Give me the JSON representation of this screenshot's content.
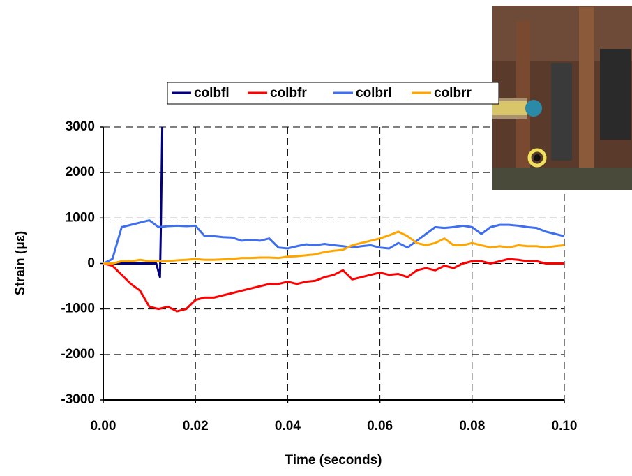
{
  "chart_data": {
    "type": "line",
    "x_label": "Time (seconds)",
    "y_label": "Strain (με)",
    "x": [
      0,
      0.002,
      0.004,
      0.006,
      0.008,
      0.01,
      0.012,
      0.014,
      0.016,
      0.018,
      0.02,
      0.022,
      0.024,
      0.026,
      0.028,
      0.03,
      0.032,
      0.034,
      0.036,
      0.038,
      0.04,
      0.042,
      0.044,
      0.046,
      0.048,
      0.05,
      0.052,
      0.054,
      0.056,
      0.058,
      0.06,
      0.062,
      0.064,
      0.066,
      0.068,
      0.07,
      0.072,
      0.074,
      0.076,
      0.078,
      0.08,
      0.082,
      0.084,
      0.086,
      0.088,
      0.09,
      0.092,
      0.094,
      0.096,
      0.098,
      0.1
    ],
    "series": [
      {
        "name": "colbfl",
        "color": "#000080",
        "x": [
          0,
          0.004,
          0.008,
          0.0115,
          0.0123,
          0.0125,
          0.0128
        ],
        "values": [
          0,
          0,
          0,
          0,
          -300,
          800,
          3000
        ]
      },
      {
        "name": "colbfr",
        "color": "#ff0000",
        "values": [
          0,
          -50,
          -250,
          -450,
          -600,
          -950,
          -1000,
          -950,
          -1050,
          -1000,
          -800,
          -750,
          -750,
          -700,
          -650,
          -600,
          -550,
          -500,
          -450,
          -450,
          -400,
          -450,
          -400,
          -380,
          -300,
          -250,
          -150,
          -350,
          -300,
          -250,
          -200,
          -250,
          -230,
          -300,
          -150,
          -100,
          -150,
          -50,
          -100,
          0,
          50,
          50,
          0,
          50,
          100,
          80,
          50,
          50,
          0,
          0,
          0
        ]
      },
      {
        "name": "colbrl",
        "color": "#3f6fef",
        "values": [
          0,
          100,
          800,
          850,
          900,
          950,
          800,
          820,
          830,
          820,
          830,
          600,
          600,
          580,
          570,
          500,
          520,
          500,
          550,
          350,
          330,
          380,
          420,
          400,
          430,
          400,
          380,
          350,
          380,
          400,
          350,
          330,
          450,
          350,
          500,
          650,
          800,
          780,
          800,
          830,
          800,
          650,
          800,
          850,
          850,
          830,
          800,
          780,
          700,
          650,
          600
        ]
      },
      {
        "name": "colbrr",
        "color": "#ffa500",
        "values": [
          0,
          0,
          50,
          50,
          80,
          50,
          50,
          50,
          70,
          80,
          100,
          80,
          80,
          90,
          100,
          120,
          120,
          130,
          130,
          120,
          150,
          160,
          180,
          200,
          250,
          280,
          300,
          400,
          450,
          500,
          550,
          620,
          700,
          600,
          450,
          400,
          450,
          550,
          400,
          400,
          450,
          400,
          350,
          380,
          350,
          400,
          380,
          380,
          350,
          380,
          400
        ]
      }
    ],
    "xlim": [
      0,
      0.1
    ],
    "xticks": [
      {
        "value": 0,
        "label": "0.00"
      },
      {
        "value": 0.02,
        "label": "0.02"
      },
      {
        "value": 0.04,
        "label": "0.04"
      },
      {
        "value": 0.06,
        "label": "0.06"
      },
      {
        "value": 0.08,
        "label": "0.08"
      },
      {
        "value": 0.1,
        "label": "0.10"
      }
    ],
    "ylim": [
      -3000,
      3000
    ],
    "yticks": [
      -3000,
      -2000,
      -1000,
      0,
      1000,
      2000,
      3000
    ],
    "grid": true,
    "legend": "top"
  }
}
